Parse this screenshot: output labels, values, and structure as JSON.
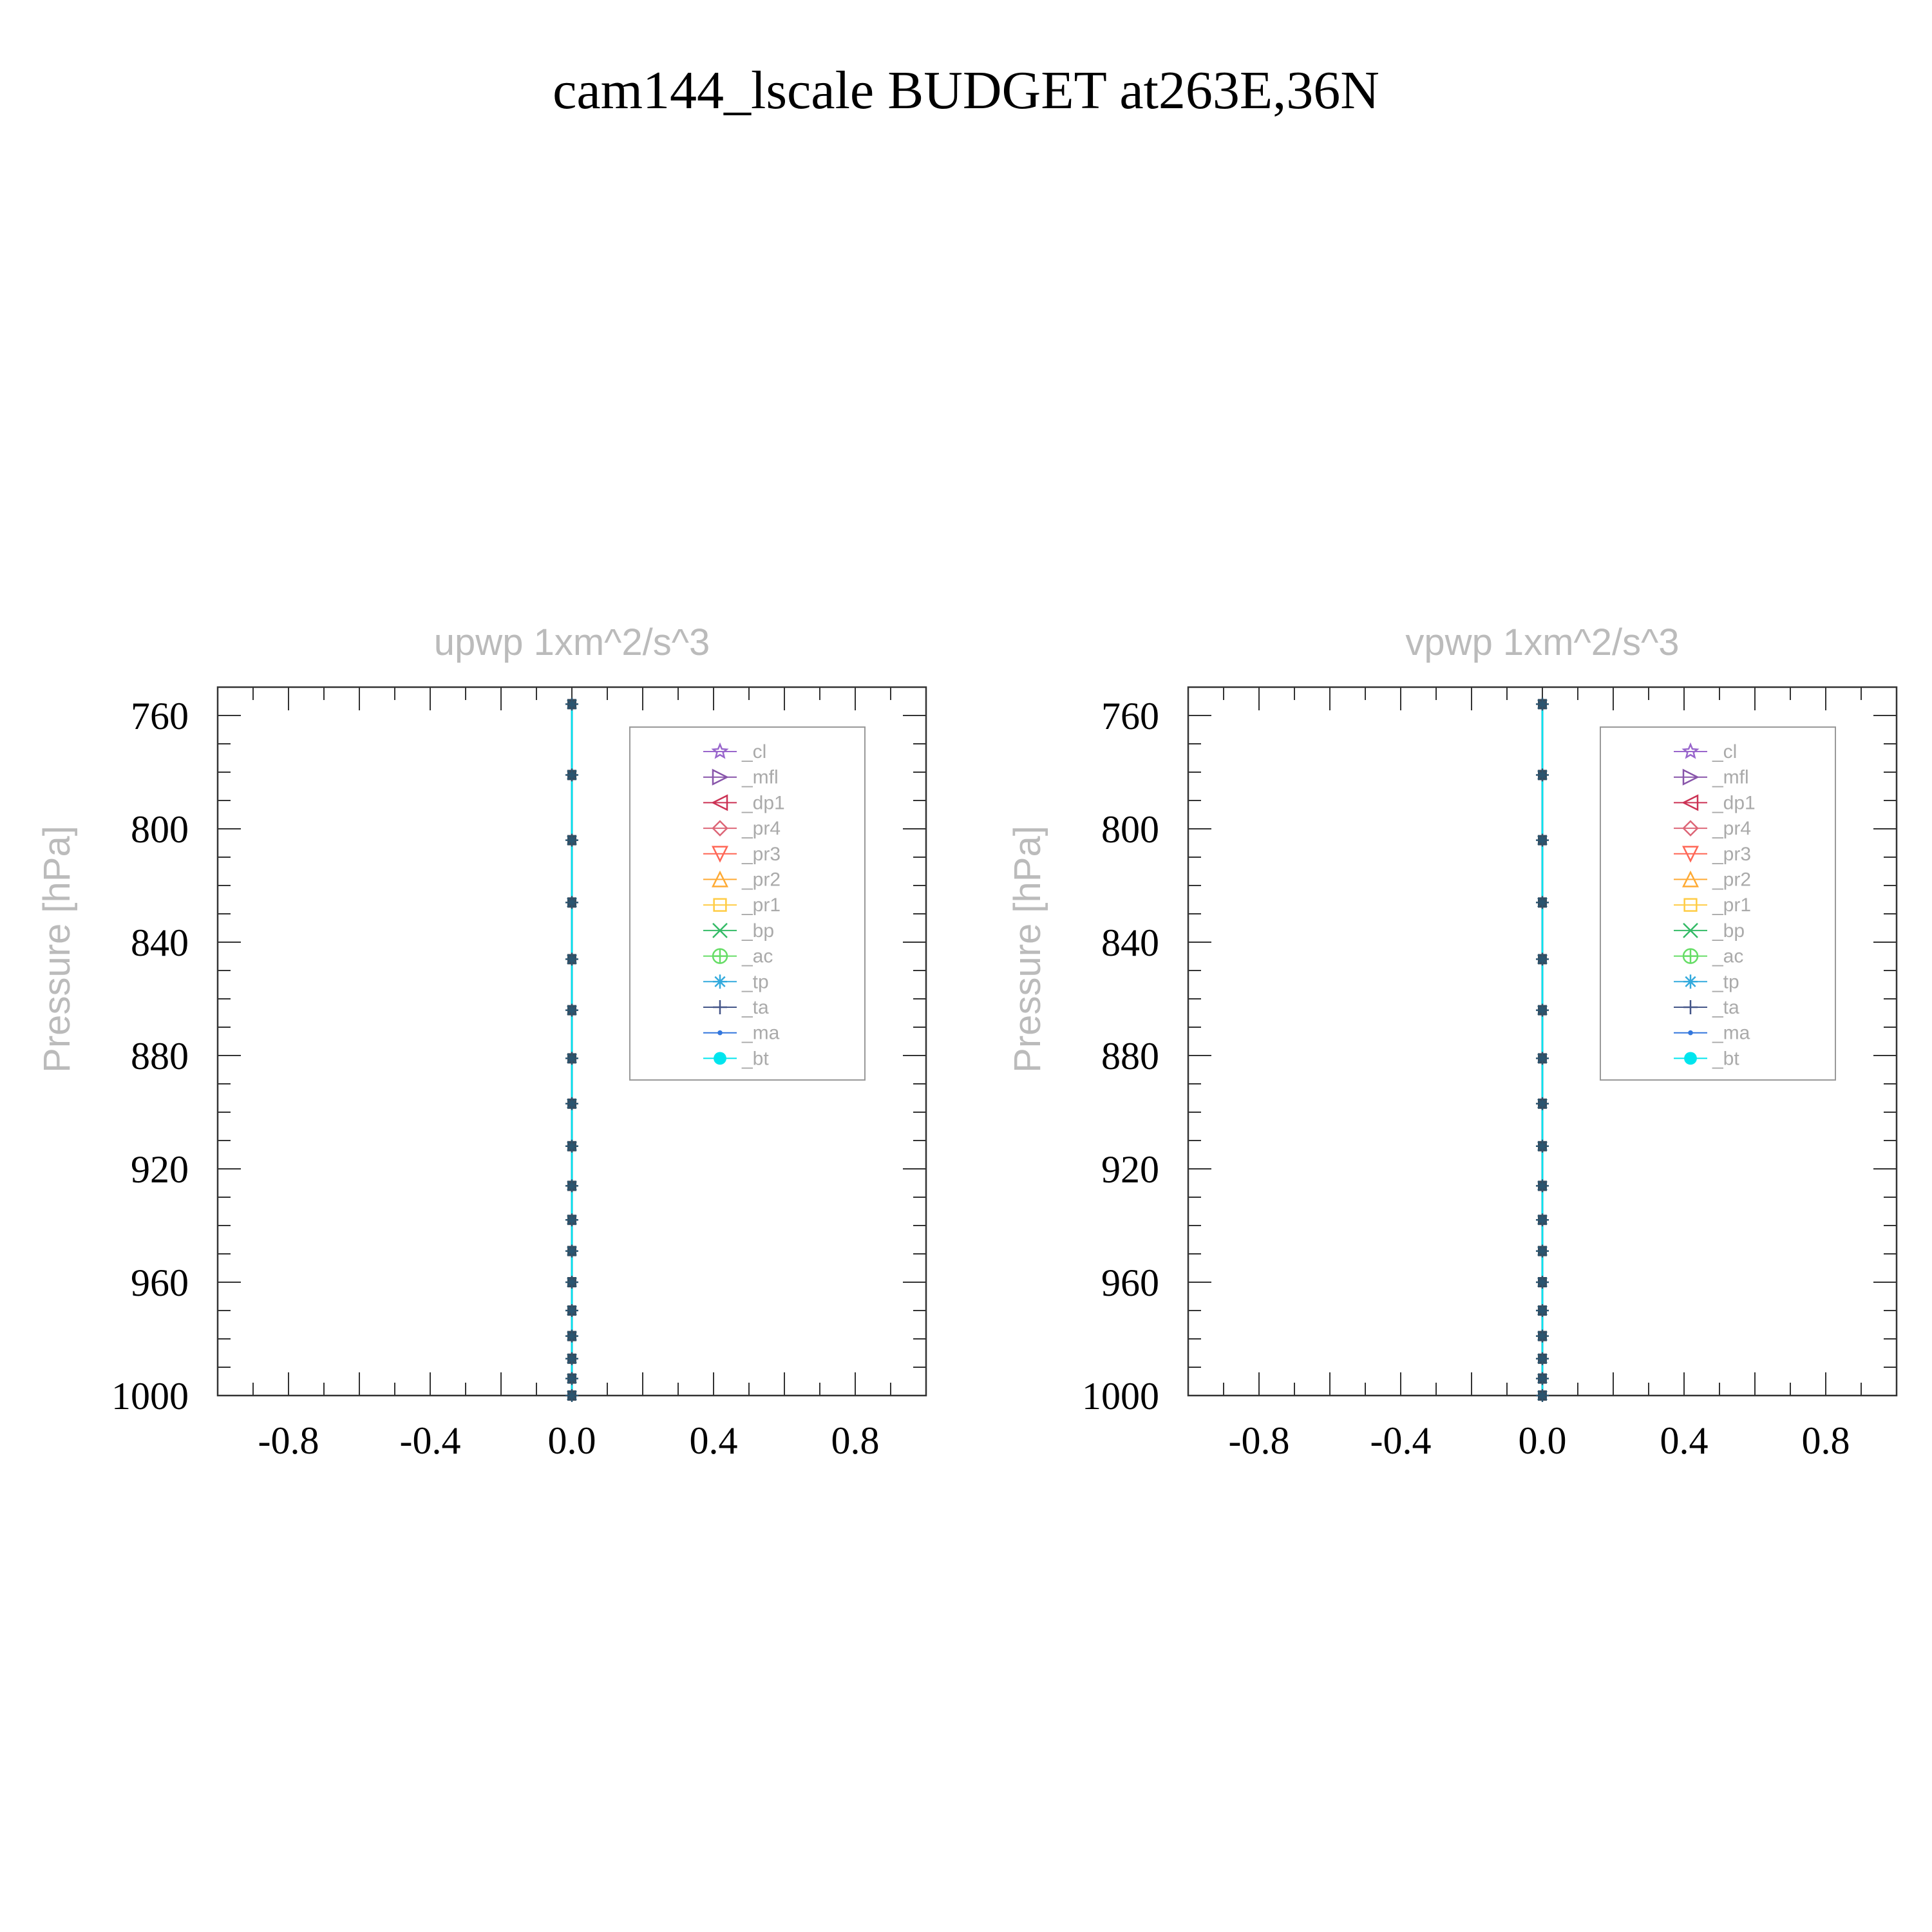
{
  "figure_title": "cam144_lscale  BUDGET at263E,36N",
  "colors": {
    "axis": "#333333",
    "tick_text": "#000000",
    "faint_text": "#bbbbbb",
    "legend_text": "#aaaaaa",
    "marker": "#3a4a5a"
  },
  "legend": [
    {
      "label": "_cl",
      "color": "#9966cc",
      "marker": "star"
    },
    {
      "label": "_mfl",
      "color": "#8855aa",
      "marker": "triangle-right"
    },
    {
      "label": "_dp1",
      "color": "#cc3355",
      "marker": "triangle-left"
    },
    {
      "label": "_pr4",
      "color": "#dd6677",
      "marker": "diamond"
    },
    {
      "label": "_pr3",
      "color": "#ff6655",
      "marker": "triangle-down"
    },
    {
      "label": "_pr2",
      "color": "#ffaa33",
      "marker": "triangle-up"
    },
    {
      "label": "_pr1",
      "color": "#ffcc44",
      "marker": "square"
    },
    {
      "label": "_bp",
      "color": "#33bb66",
      "marker": "x"
    },
    {
      "label": "_ac",
      "color": "#66dd66",
      "marker": "circle-cross"
    },
    {
      "label": "_tp",
      "color": "#33aadd",
      "marker": "asterisk"
    },
    {
      "label": "_ta",
      "color": "#445588",
      "marker": "plus"
    },
    {
      "label": "_ma",
      "color": "#3377dd",
      "marker": "dot"
    },
    {
      "label": "_bt",
      "color": "#00e5ee",
      "marker": "filled-circle"
    }
  ],
  "chart_data": [
    {
      "type": "line",
      "title": "upwp    1xm^2/s^3",
      "xlabel": "",
      "ylabel": "Pressure  [hPa]",
      "xlim": [
        -1.0,
        1.0
      ],
      "ylim": [
        1000,
        750
      ],
      "y_inverted": true,
      "xticks": [
        "-0.8",
        "-0.4",
        "0.0",
        "0.4",
        "0.8"
      ],
      "xtick_values": [
        -0.8,
        -0.4,
        0.0,
        0.4,
        0.8
      ],
      "yticks": [
        "760",
        "800",
        "840",
        "880",
        "920",
        "960",
        "1000"
      ],
      "ytick_values": [
        760,
        800,
        840,
        880,
        920,
        960,
        1000
      ],
      "pressure_levels": [
        756,
        781,
        804,
        826,
        846,
        864,
        881,
        897,
        912,
        926,
        938,
        949,
        960,
        970,
        979,
        987,
        994,
        1000
      ],
      "series": [
        {
          "name": "_cl",
          "x": [
            0,
            0,
            0,
            0,
            0,
            0,
            0,
            0,
            0,
            0,
            0,
            0,
            0,
            0,
            0,
            0,
            0,
            0
          ]
        },
        {
          "name": "_mfl",
          "x": [
            0,
            0,
            0,
            0,
            0,
            0,
            0,
            0,
            0,
            0,
            0,
            0,
            0,
            0,
            0,
            0,
            0,
            0
          ]
        },
        {
          "name": "_dp1",
          "x": [
            0,
            0,
            0,
            0,
            0,
            0,
            0,
            0,
            0,
            0,
            0,
            0,
            0,
            0,
            0,
            0,
            0,
            0
          ]
        },
        {
          "name": "_pr4",
          "x": [
            0,
            0,
            0,
            0,
            0,
            0,
            0,
            0,
            0,
            0,
            0,
            0,
            0,
            0,
            0,
            0,
            0,
            0
          ]
        },
        {
          "name": "_pr3",
          "x": [
            0,
            0,
            0,
            0,
            0,
            0,
            0,
            0,
            0,
            0,
            0,
            0,
            0,
            0,
            0,
            0,
            0,
            0
          ]
        },
        {
          "name": "_pr2",
          "x": [
            0,
            0,
            0,
            0,
            0,
            0,
            0,
            0,
            0,
            0,
            0,
            0,
            0,
            0,
            0,
            0,
            0,
            0
          ]
        },
        {
          "name": "_pr1",
          "x": [
            0,
            0,
            0,
            0,
            0,
            0,
            0,
            0,
            0,
            0,
            0,
            0,
            0,
            0,
            0,
            0,
            0,
            0
          ]
        },
        {
          "name": "_bp",
          "x": [
            0,
            0,
            0,
            0,
            0,
            0,
            0,
            0,
            0,
            0,
            0,
            0,
            0,
            0,
            0,
            0,
            0,
            0
          ]
        },
        {
          "name": "_ac",
          "x": [
            0,
            0,
            0,
            0,
            0,
            0,
            0,
            0,
            0,
            0,
            0,
            0,
            0,
            0,
            0,
            0,
            0,
            0
          ]
        },
        {
          "name": "_tp",
          "x": [
            0,
            0,
            0,
            0,
            0,
            0,
            0,
            0,
            0,
            0,
            0,
            0,
            0,
            0,
            0,
            0,
            0,
            0
          ]
        },
        {
          "name": "_ta",
          "x": [
            0,
            0,
            0,
            0,
            0,
            0,
            0,
            0,
            0,
            0,
            0,
            0,
            0,
            0,
            0,
            0,
            0,
            0
          ]
        },
        {
          "name": "_ma",
          "x": [
            0,
            0,
            0,
            0,
            0,
            0,
            0,
            0,
            0,
            0,
            0,
            0,
            0,
            0,
            0,
            0,
            0,
            0
          ]
        },
        {
          "name": "_bt",
          "x": [
            0,
            0,
            0,
            0,
            0,
            0,
            0,
            0,
            0,
            0,
            0,
            0,
            0,
            0,
            0,
            0,
            0,
            0
          ]
        }
      ],
      "legend_position": "top-right",
      "grid": false
    },
    {
      "type": "line",
      "title": "vpwp    1xm^2/s^3",
      "xlabel": "",
      "ylabel": "Pressure  [hPa]",
      "xlim": [
        -1.0,
        1.0
      ],
      "ylim": [
        1000,
        750
      ],
      "y_inverted": true,
      "xticks": [
        "-0.8",
        "-0.4",
        "0.0",
        "0.4",
        "0.8"
      ],
      "xtick_values": [
        -0.8,
        -0.4,
        0.0,
        0.4,
        0.8
      ],
      "yticks": [
        "760",
        "800",
        "840",
        "880",
        "920",
        "960",
        "1000"
      ],
      "ytick_values": [
        760,
        800,
        840,
        880,
        920,
        960,
        1000
      ],
      "pressure_levels": [
        756,
        781,
        804,
        826,
        846,
        864,
        881,
        897,
        912,
        926,
        938,
        949,
        960,
        970,
        979,
        987,
        994,
        1000
      ],
      "series": [
        {
          "name": "_cl",
          "x": [
            0,
            0,
            0,
            0,
            0,
            0,
            0,
            0,
            0,
            0,
            0,
            0,
            0,
            0,
            0,
            0,
            0,
            0
          ]
        },
        {
          "name": "_mfl",
          "x": [
            0,
            0,
            0,
            0,
            0,
            0,
            0,
            0,
            0,
            0,
            0,
            0,
            0,
            0,
            0,
            0,
            0,
            0
          ]
        },
        {
          "name": "_dp1",
          "x": [
            0,
            0,
            0,
            0,
            0,
            0,
            0,
            0,
            0,
            0,
            0,
            0,
            0,
            0,
            0,
            0,
            0,
            0
          ]
        },
        {
          "name": "_pr4",
          "x": [
            0,
            0,
            0,
            0,
            0,
            0,
            0,
            0,
            0,
            0,
            0,
            0,
            0,
            0,
            0,
            0,
            0,
            0
          ]
        },
        {
          "name": "_pr3",
          "x": [
            0,
            0,
            0,
            0,
            0,
            0,
            0,
            0,
            0,
            0,
            0,
            0,
            0,
            0,
            0,
            0,
            0,
            0
          ]
        },
        {
          "name": "_pr2",
          "x": [
            0,
            0,
            0,
            0,
            0,
            0,
            0,
            0,
            0,
            0,
            0,
            0,
            0,
            0,
            0,
            0,
            0,
            0
          ]
        },
        {
          "name": "_pr1",
          "x": [
            0,
            0,
            0,
            0,
            0,
            0,
            0,
            0,
            0,
            0,
            0,
            0,
            0,
            0,
            0,
            0,
            0,
            0
          ]
        },
        {
          "name": "_bp",
          "x": [
            0,
            0,
            0,
            0,
            0,
            0,
            0,
            0,
            0,
            0,
            0,
            0,
            0,
            0,
            0,
            0,
            0,
            0
          ]
        },
        {
          "name": "_ac",
          "x": [
            0,
            0,
            0,
            0,
            0,
            0,
            0,
            0,
            0,
            0,
            0,
            0,
            0,
            0,
            0,
            0,
            0,
            0
          ]
        },
        {
          "name": "_tp",
          "x": [
            0,
            0,
            0,
            0,
            0,
            0,
            0,
            0,
            0,
            0,
            0,
            0,
            0,
            0,
            0,
            0,
            0,
            0
          ]
        },
        {
          "name": "_ta",
          "x": [
            0,
            0,
            0,
            0,
            0,
            0,
            0,
            0,
            0,
            0,
            0,
            0,
            0,
            0,
            0,
            0,
            0,
            0
          ]
        },
        {
          "name": "_ma",
          "x": [
            0,
            0,
            0,
            0,
            0,
            0,
            0,
            0,
            0,
            0,
            0,
            0,
            0,
            0,
            0,
            0,
            0,
            0
          ]
        },
        {
          "name": "_bt",
          "x": [
            0,
            0,
            0,
            0,
            0,
            0,
            0,
            0,
            0,
            0,
            0,
            0,
            0,
            0,
            0,
            0,
            0,
            0
          ]
        }
      ],
      "legend_position": "top-right",
      "grid": false
    }
  ]
}
